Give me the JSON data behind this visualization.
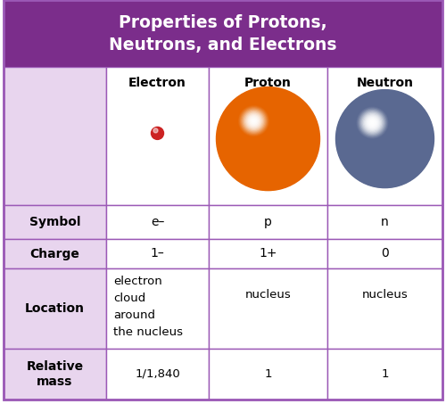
{
  "title_line1": "Properties of Protons,",
  "title_line2": "Neutrons, and Electrons",
  "title_bg": "#7B2D8B",
  "title_color": "#FFFFFF",
  "header_bg": "#E8D5EE",
  "cell_bg": "#FFFFFF",
  "border_color": "#9B59B6",
  "row_labels": [
    "",
    "Symbol",
    "Charge",
    "Location",
    "Relative\nmass"
  ],
  "col_headers": [
    "Electron",
    "Proton",
    "Neutron"
  ],
  "symbol_row": [
    "e–",
    "p",
    "n"
  ],
  "charge_row": [
    "1–",
    "1+",
    "0"
  ],
  "location_row_0": "electron\ncloud\naround\nthe nucleus",
  "location_row_1": "nucleus",
  "location_row_2": "nucleus",
  "mass_row": [
    "1/1,840",
    "1",
    "1"
  ],
  "electron_color": "#CC2222",
  "fig_bg": "#FFFFFF"
}
